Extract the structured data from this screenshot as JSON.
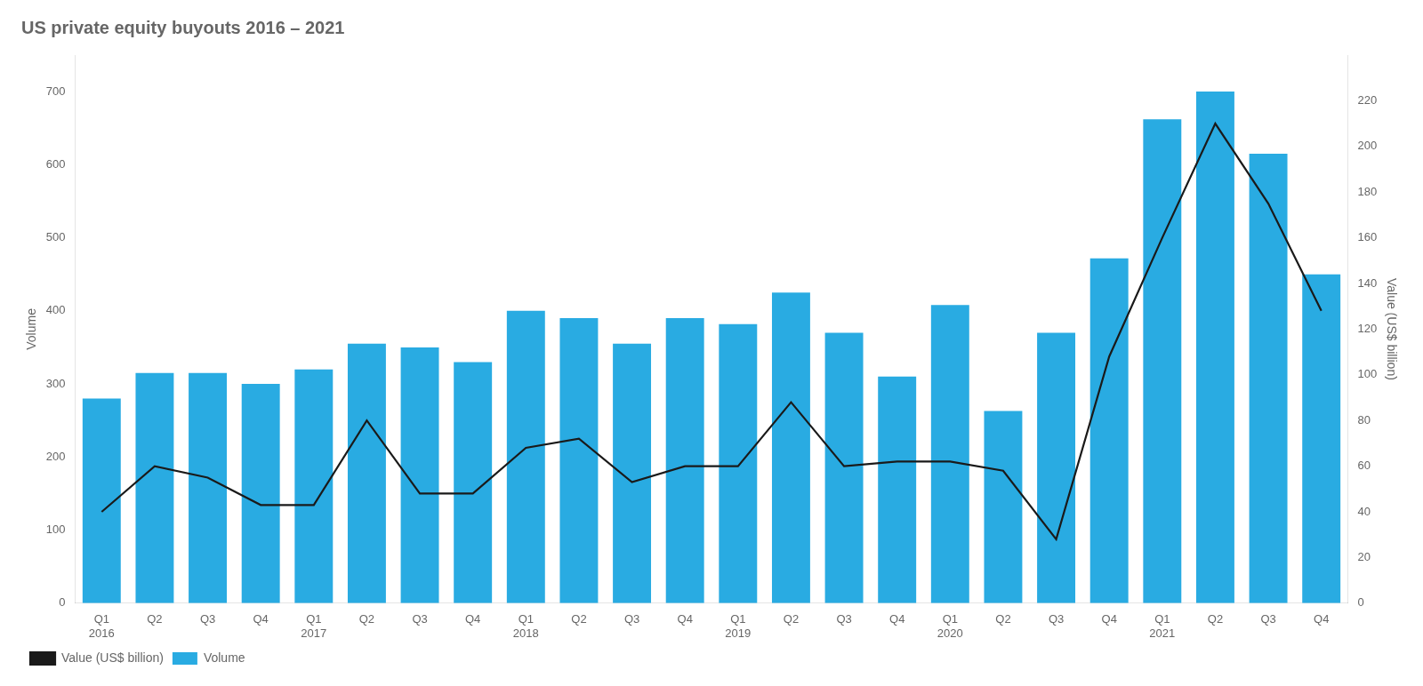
{
  "chart_data": {
    "type": "bar",
    "title": "US private equity buyouts 2016 – 2021",
    "ylabel": "Volume",
    "y2label": "Value (US$ billion)",
    "categories": [
      "Q1",
      "Q2",
      "Q3",
      "Q4",
      "Q1",
      "Q2",
      "Q3",
      "Q4",
      "Q1",
      "Q2",
      "Q3",
      "Q4",
      "Q1",
      "Q2",
      "Q3",
      "Q4",
      "Q1",
      "Q2",
      "Q3",
      "Q4",
      "Q1",
      "Q2",
      "Q3",
      "Q4"
    ],
    "annotations": [
      {
        "text": "2016",
        "category": 0
      },
      {
        "text": "2017",
        "category": 4
      },
      {
        "text": "2018",
        "category": 8
      },
      {
        "text": "2019",
        "category": 12
      },
      {
        "text": "2020",
        "category": 16
      },
      {
        "text": "2021",
        "category": 20
      }
    ],
    "series": [
      {
        "name": "Volume",
        "type": "bar",
        "color": "#29abe2",
        "values": [
          280,
          315,
          315,
          300,
          320,
          355,
          350,
          330,
          400,
          390,
          355,
          390,
          382,
          425,
          370,
          310,
          408,
          263,
          370,
          472,
          662,
          700,
          615,
          450
        ]
      },
      {
        "name": "Value (US$ billion)",
        "type": "line",
        "color": "#1a1a1a",
        "axis": "y2",
        "marker": "none",
        "line_style": "solid",
        "values": [
          40,
          60,
          55,
          43,
          43,
          80,
          48,
          48,
          68,
          72,
          53,
          60,
          60,
          88,
          60,
          62,
          62,
          58,
          28,
          108,
          160,
          210,
          175,
          128
        ]
      }
    ],
    "ylim": [
      0,
      750
    ],
    "yticks": [
      0,
      100,
      200,
      300,
      400,
      500,
      600,
      700
    ],
    "y2lim": [
      0,
      240
    ],
    "y2ticks": [
      0,
      20,
      40,
      60,
      80,
      100,
      120,
      140,
      160,
      180,
      200,
      220
    ],
    "grid": false,
    "legend": "bottom"
  }
}
